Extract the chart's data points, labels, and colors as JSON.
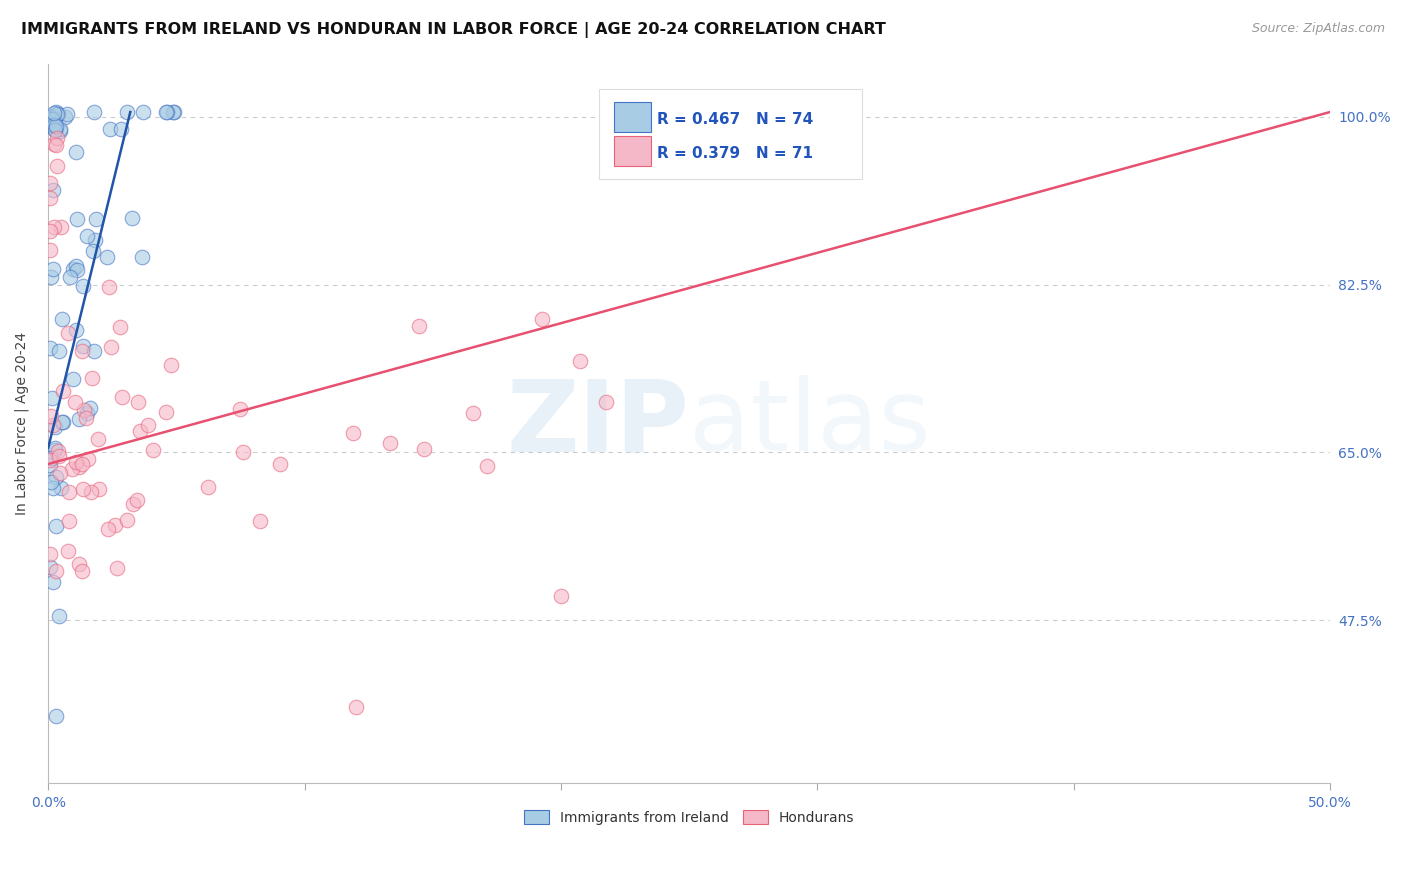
{
  "title": "IMMIGRANTS FROM IRELAND VS HONDURAN IN LABOR FORCE | AGE 20-24 CORRELATION CHART",
  "source": "Source: ZipAtlas.com",
  "ylabel": "In Labor Force | Age 20-24",
  "ytick_labels": [
    "100.0%",
    "82.5%",
    "65.0%",
    "47.5%"
  ],
  "ytick_values": [
    1.0,
    0.825,
    0.65,
    0.475
  ],
  "xlim": [
    0.0,
    0.5
  ],
  "ylim": [
    0.305,
    1.055
  ],
  "legend_blue_r": "R = 0.467",
  "legend_blue_n": "N = 74",
  "legend_pink_r": "R = 0.379",
  "legend_pink_n": "N = 71",
  "legend_blue_label": "Immigrants from Ireland",
  "legend_pink_label": "Hondurans",
  "blue_color": "#a8cce4",
  "pink_color": "#f5b8c8",
  "blue_edge_color": "#4472c4",
  "pink_edge_color": "#e8627a",
  "blue_line_color": "#2255aa",
  "pink_line_color": "#e85070",
  "r_value_color": "#2255bb",
  "blue_trend_x0": 0.0,
  "blue_trend_x1": 0.032,
  "blue_trend_y0": 0.655,
  "blue_trend_y1": 1.005,
  "pink_trend_x0": 0.0,
  "pink_trend_x1": 0.5,
  "pink_trend_y0": 0.638,
  "pink_trend_y1": 1.005,
  "watermark_zip": "ZIP",
  "watermark_atlas": "atlas",
  "background_color": "#ffffff",
  "grid_color": "#cccccc",
  "title_fontsize": 11.5,
  "source_fontsize": 9,
  "ylabel_fontsize": 10,
  "tick_fontsize": 10,
  "tick_color": "#4472c4",
  "xtick_left_label": "0.0%",
  "xtick_right_label": "50.0%"
}
